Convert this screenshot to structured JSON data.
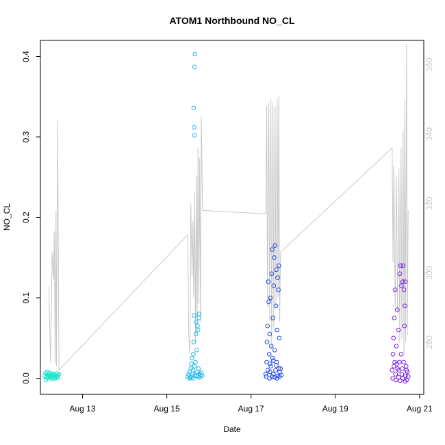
{
  "chart_data": {
    "type": "scatter",
    "title": "ATOM1 Northbound NO_CL",
    "xlabel": "Date",
    "ylabel": "NO_CL",
    "x_ticks": [
      {
        "label": "Aug 13",
        "day": 13
      },
      {
        "label": "Aug 15",
        "day": 15
      },
      {
        "label": "Aug 17",
        "day": 17
      },
      {
        "label": "Aug 19",
        "day": 19
      },
      {
        "label": "Aug 21",
        "day": 21
      }
    ],
    "xlim_days": [
      12.0,
      21.1
    ],
    "ylim": [
      -0.02,
      0.42
    ],
    "y_ticks": [
      0.0,
      0.1,
      0.2,
      0.3,
      0.4
    ],
    "y2lim": [
      265,
      367
    ],
    "y2_ticks": [
      280,
      300,
      320,
      340,
      360
    ],
    "line_color": "#c8c8c8",
    "line_series": [
      [
        12.2,
        296
      ],
      [
        12.24,
        274
      ],
      [
        12.28,
        306
      ],
      [
        12.31,
        298
      ],
      [
        12.33,
        312
      ],
      [
        12.35,
        274
      ],
      [
        12.37,
        318
      ],
      [
        12.38,
        273
      ],
      [
        12.41,
        344
      ],
      [
        12.44,
        272
      ],
      [
        15.5,
        311
      ],
      [
        15.52,
        282
      ],
      [
        15.55,
        277
      ],
      [
        15.57,
        320
      ],
      [
        15.6,
        299
      ],
      [
        15.62,
        315
      ],
      [
        15.64,
        293
      ],
      [
        15.66,
        323
      ],
      [
        15.68,
        280
      ],
      [
        15.7,
        328
      ],
      [
        15.72,
        283
      ],
      [
        15.74,
        336
      ],
      [
        15.76,
        291
      ],
      [
        15.78,
        333
      ],
      [
        15.8,
        286
      ],
      [
        15.82,
        345
      ],
      [
        15.85,
        318
      ],
      [
        17.35,
        317
      ],
      [
        17.37,
        348
      ],
      [
        17.39,
        290
      ],
      [
        17.42,
        349
      ],
      [
        17.44,
        286
      ],
      [
        17.47,
        350
      ],
      [
        17.49,
        278
      ],
      [
        17.52,
        349
      ],
      [
        17.54,
        284
      ],
      [
        17.57,
        348
      ],
      [
        17.59,
        290
      ],
      [
        17.62,
        350
      ],
      [
        17.64,
        293
      ],
      [
        17.66,
        351
      ],
      [
        17.68,
        286
      ],
      [
        17.7,
        306
      ],
      [
        20.35,
        336
      ],
      [
        20.37,
        303
      ],
      [
        20.39,
        331
      ],
      [
        20.42,
        290
      ],
      [
        20.45,
        328
      ],
      [
        20.48,
        288
      ],
      [
        20.51,
        330
      ],
      [
        20.53,
        280
      ],
      [
        20.56,
        336
      ],
      [
        20.58,
        281
      ],
      [
        20.61,
        341
      ],
      [
        20.63,
        276
      ],
      [
        20.65,
        350
      ],
      [
        20.67,
        280
      ],
      [
        20.69,
        366
      ],
      [
        20.71,
        282
      ],
      [
        20.73,
        318
      ]
    ],
    "point_series": [
      {
        "color": "#19e5c8",
        "points": [
          [
            12.1,
            0.003
          ],
          [
            12.12,
            0.006
          ],
          [
            12.14,
            0.001
          ],
          [
            12.15,
            0.008
          ],
          [
            12.17,
            0.004
          ],
          [
            12.19,
            0.002
          ],
          [
            12.2,
            0.007
          ],
          [
            12.22,
            0.005
          ],
          [
            12.24,
            0.0
          ],
          [
            12.25,
            0.003
          ],
          [
            12.27,
            0.006
          ],
          [
            12.28,
            0.002
          ],
          [
            12.3,
            0.004
          ],
          [
            12.32,
            0.005
          ],
          [
            12.34,
            0.001
          ],
          [
            12.36,
            0.003
          ],
          [
            12.38,
            0.006
          ],
          [
            12.4,
            0.002
          ],
          [
            12.42,
            0.004
          ],
          [
            12.44,
            0.005
          ],
          [
            12.13,
            -0.002
          ],
          [
            12.18,
            0.001
          ],
          [
            12.23,
            0.002
          ],
          [
            12.29,
            -0.001
          ],
          [
            12.35,
            0.0
          ],
          [
            12.41,
            0.001
          ]
        ]
      },
      {
        "color": "#1fb8f0",
        "points": [
          [
            15.5,
            0.002
          ],
          [
            15.52,
            0.005
          ],
          [
            15.54,
            0.0
          ],
          [
            15.55,
            0.008
          ],
          [
            15.57,
            0.012
          ],
          [
            15.58,
            0.018
          ],
          [
            15.6,
            0.025
          ],
          [
            15.61,
            0.005
          ],
          [
            15.62,
            0.01
          ],
          [
            15.63,
            0.03
          ],
          [
            15.64,
            0.045
          ],
          [
            15.65,
            0.078
          ],
          [
            15.66,
            0.015
          ],
          [
            15.67,
            0.004
          ],
          [
            15.68,
            0.02
          ],
          [
            15.69,
            0.055
          ],
          [
            15.7,
            0.07
          ],
          [
            15.71,
            0.035
          ],
          [
            15.72,
            0.008
          ],
          [
            15.73,
            0.065
          ],
          [
            15.74,
            0.06
          ],
          [
            15.75,
            0.012
          ],
          [
            15.76,
            0.075
          ],
          [
            15.77,
            0.08
          ],
          [
            15.78,
            0.006
          ],
          [
            15.8,
            0.004
          ],
          [
            15.82,
            0.007
          ],
          [
            15.84,
            0.003
          ],
          [
            15.64,
            0.336
          ],
          [
            15.65,
            0.312
          ],
          [
            15.66,
            0.302
          ],
          [
            15.66,
            0.387
          ],
          [
            15.67,
            0.403
          ],
          [
            15.56,
            0.001
          ],
          [
            15.59,
            0.002
          ],
          [
            15.62,
            0.0
          ],
          [
            15.7,
            0.003
          ],
          [
            15.74,
            0.002
          ],
          [
            15.78,
            0.001
          ]
        ]
      },
      {
        "color": "#1e46e6",
        "points": [
          [
            17.35,
            0.005
          ],
          [
            17.37,
            0.02
          ],
          [
            17.38,
            0.045
          ],
          [
            17.39,
            0.065
          ],
          [
            17.4,
            0.01
          ],
          [
            17.41,
            0.12
          ],
          [
            17.42,
            0.095
          ],
          [
            17.43,
            0.03
          ],
          [
            17.44,
            0.055
          ],
          [
            17.45,
            0.008
          ],
          [
            17.46,
            0.1
          ],
          [
            17.47,
            0.015
          ],
          [
            17.48,
            0.04
          ],
          [
            17.49,
            0.13
          ],
          [
            17.5,
            0.16
          ],
          [
            17.51,
            0.025
          ],
          [
            17.52,
            0.075
          ],
          [
            17.53,
            0.005
          ],
          [
            17.54,
            0.115
          ],
          [
            17.55,
            0.15
          ],
          [
            17.56,
            0.035
          ],
          [
            17.57,
            0.165
          ],
          [
            17.58,
            0.01
          ],
          [
            17.59,
            0.09
          ],
          [
            17.6,
            0.135
          ],
          [
            17.61,
            0.02
          ],
          [
            17.62,
            0.06
          ],
          [
            17.63,
            0.125
          ],
          [
            17.64,
            0.003
          ],
          [
            17.65,
            0.11
          ],
          [
            17.66,
            0.14
          ],
          [
            17.67,
            0.05
          ],
          [
            17.68,
            0.008
          ],
          [
            17.7,
            0.012
          ],
          [
            17.72,
            0.004
          ],
          [
            17.36,
            0.002
          ],
          [
            17.44,
            0.0
          ],
          [
            17.5,
            0.002
          ],
          [
            17.56,
            0.001
          ],
          [
            17.62,
            0.0
          ],
          [
            17.68,
            0.002
          ],
          [
            17.45,
            0.018
          ],
          [
            17.53,
            0.022
          ],
          [
            17.6,
            0.016
          ],
          [
            17.66,
            0.012
          ]
        ]
      },
      {
        "color": "#7a1ee6",
        "points": [
          [
            20.35,
            0.01
          ],
          [
            20.37,
            0.03
          ],
          [
            20.38,
            0.05
          ],
          [
            20.4,
            0.075
          ],
          [
            20.41,
            0.02
          ],
          [
            20.42,
            0.11
          ],
          [
            20.43,
            0.005
          ],
          [
            20.45,
            0.04
          ],
          [
            20.47,
            0.085
          ],
          [
            20.48,
            0.012
          ],
          [
            20.5,
            0.06
          ],
          [
            20.52,
            0.02
          ],
          [
            20.53,
            0.13
          ],
          [
            20.55,
            0.14
          ],
          [
            20.56,
            0.03
          ],
          [
            20.57,
            0.115
          ],
          [
            20.58,
            0.005
          ],
          [
            20.6,
            0.12
          ],
          [
            20.61,
            0.14
          ],
          [
            20.62,
            0.02
          ],
          [
            20.63,
            0.11
          ],
          [
            20.64,
            0.065
          ],
          [
            20.65,
            0.09
          ],
          [
            20.66,
            0.12
          ],
          [
            20.67,
            0.003
          ],
          [
            20.69,
            0.01
          ],
          [
            20.71,
            0.008
          ],
          [
            20.73,
            0.002
          ],
          [
            20.36,
            0.0
          ],
          [
            20.44,
            -0.002
          ],
          [
            20.5,
            0.001
          ],
          [
            20.54,
            -0.003
          ],
          [
            20.6,
            0.0
          ],
          [
            20.66,
            -0.004
          ],
          [
            20.7,
            -0.002
          ],
          [
            20.39,
            0.015
          ],
          [
            20.46,
            0.018
          ],
          [
            20.51,
            0.01
          ],
          [
            20.59,
            0.012
          ],
          [
            20.68,
            0.015
          ]
        ]
      }
    ]
  }
}
